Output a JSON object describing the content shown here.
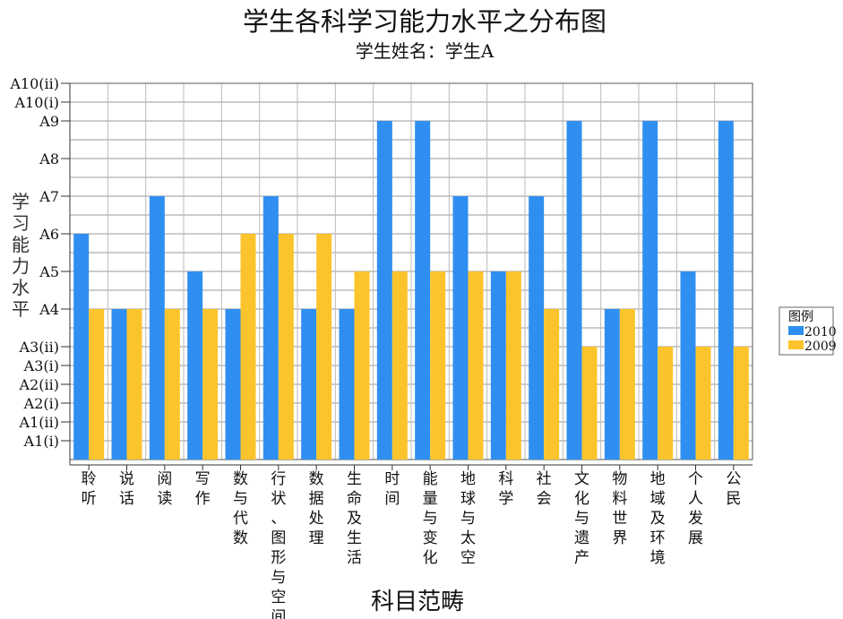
{
  "chart_data": {
    "type": "bar",
    "title": "学生各科学习能力水平之分布图",
    "subtitle": "学生姓名：学生A",
    "xlabel": "科目范畴",
    "ylabel": "学习能力水平",
    "y_levels": [
      "A1(i)",
      "A1(ii)",
      "A2(i)",
      "A2(ii)",
      "A3(i)",
      "A3(ii)",
      "A4",
      "A5",
      "A6",
      "A7",
      "A8",
      "A9",
      "A10(i)",
      "A10(ii)"
    ],
    "y_level_values": [
      1,
      2,
      3,
      4,
      5,
      6,
      8,
      10,
      12,
      14,
      16,
      18,
      19,
      20
    ],
    "ylim": [
      0,
      20
    ],
    "grid": true,
    "legend": {
      "title": "图例",
      "placement": "right"
    },
    "categories": [
      "聆听",
      "说话",
      "阅读",
      "写作",
      "数与代数",
      "行状、图形与空间",
      "数据处理",
      "生命及生活",
      "时间",
      "能量与变化",
      "地球与太空",
      "科学",
      "社会",
      "文化与遗产",
      "物料世界",
      "地域及环境",
      "个人发展",
      "公民"
    ],
    "series": [
      {
        "name": "2010",
        "color": "#2f8ff0",
        "values": [
          "A6",
          "A4",
          "A7",
          "A5",
          "A4",
          "A7",
          "A4",
          "A4",
          "A9",
          "A9",
          "A7",
          "A5",
          "A7",
          "A9",
          "A4",
          "A9",
          "A5",
          "A9"
        ]
      },
      {
        "name": "2009",
        "color": "#fcc42c",
        "values": [
          "A4",
          "A4",
          "A4",
          "A4",
          "A6",
          "A6",
          "A6",
          "A5",
          "A5",
          "A5",
          "A5",
          "A5",
          "A4",
          "A3(ii)",
          "A4",
          "A3(ii)",
          "A3(ii)",
          "A3(ii)"
        ]
      }
    ]
  }
}
